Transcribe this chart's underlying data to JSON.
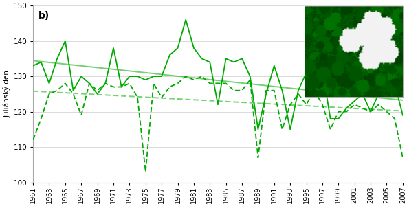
{
  "years": [
    1961,
    1962,
    1963,
    1964,
    1965,
    1966,
    1967,
    1968,
    1969,
    1970,
    1971,
    1972,
    1973,
    1974,
    1975,
    1976,
    1977,
    1978,
    1979,
    1980,
    1981,
    1982,
    1983,
    1984,
    1985,
    1986,
    1987,
    1988,
    1989,
    1990,
    1991,
    1992,
    1993,
    1994,
    1995,
    1996,
    1997,
    1998,
    1999,
    2000,
    2001,
    2002,
    2003,
    2004,
    2005,
    2006,
    2007
  ],
  "solid_line": [
    133,
    134,
    128,
    135,
    140,
    126,
    130,
    128,
    125,
    128,
    138,
    127,
    130,
    130,
    129,
    130,
    130,
    136,
    138,
    146,
    138,
    135,
    134,
    122,
    135,
    134,
    135,
    130,
    115,
    125,
    133,
    126,
    115,
    126,
    131,
    126,
    132,
    118,
    118,
    121,
    123,
    125,
    120,
    125,
    125,
    128,
    119
  ],
  "dashed_line": [
    112,
    118,
    125,
    126,
    128,
    125,
    119,
    128,
    126,
    128,
    127,
    127,
    128,
    124,
    103,
    128,
    124,
    127,
    128,
    130,
    129,
    130,
    128,
    128,
    128,
    126,
    126,
    129,
    107,
    126,
    126,
    115,
    122,
    125,
    122,
    126,
    122,
    115,
    120,
    120,
    122,
    121,
    120,
    122,
    120,
    118,
    107
  ],
  "ylabel": "Juliánský den",
  "annotation": "b)",
  "ylim": [
    100,
    150
  ],
  "yticks": [
    100,
    110,
    120,
    130,
    140,
    150
  ],
  "line_color": "#00aa00",
  "background_color": "#ffffff",
  "fig_width": 5.95,
  "fig_height": 3.0,
  "dpi": 100
}
